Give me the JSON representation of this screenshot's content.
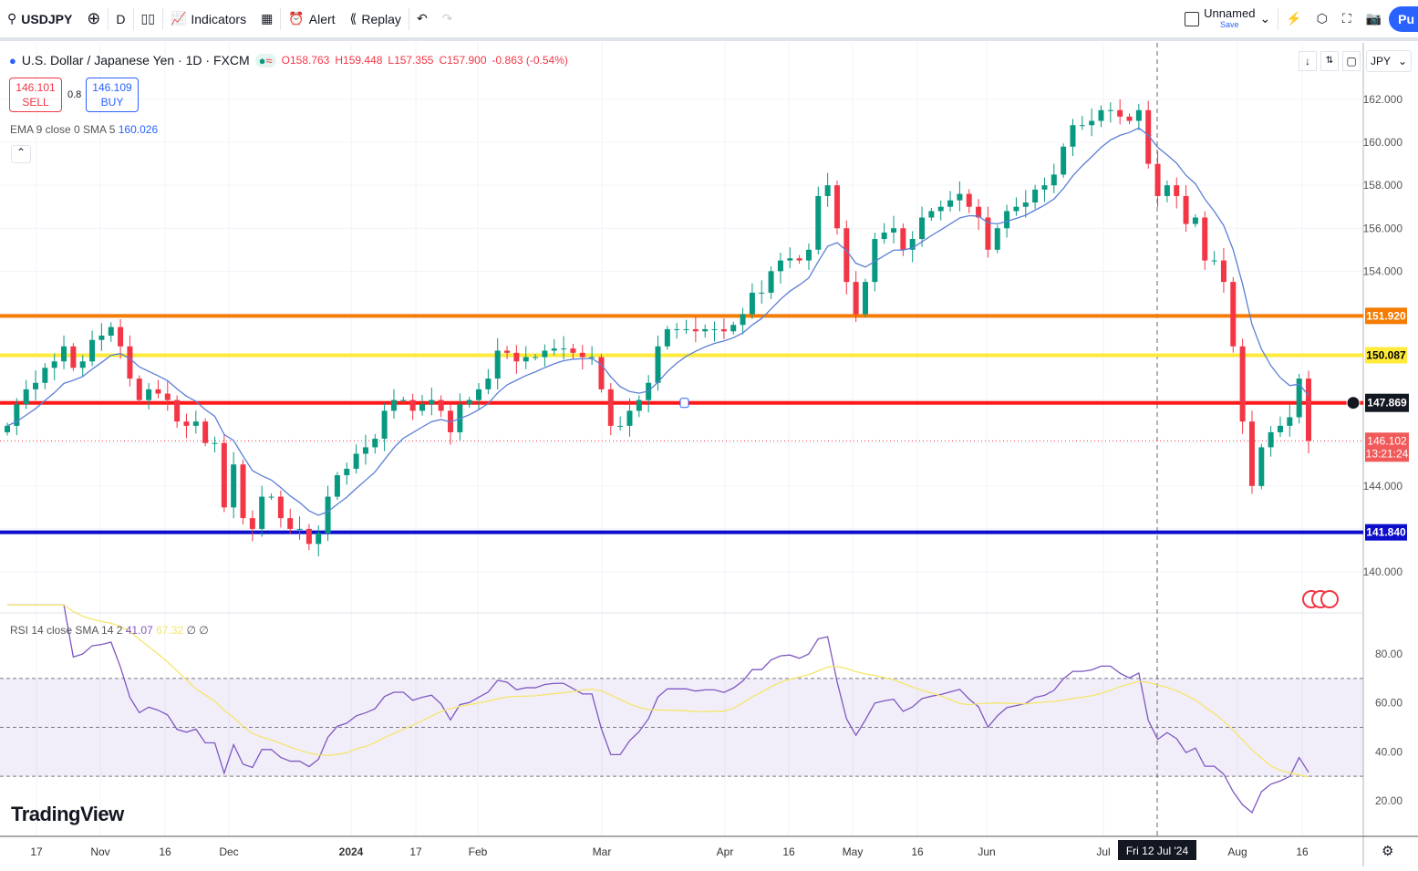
{
  "toolbar": {
    "symbol": "USDJPY",
    "interval": "D",
    "indicators": "Indicators",
    "alert": "Alert",
    "replay": "Replay",
    "layout_name": "Unnamed",
    "save": "Save",
    "publish": "Pu"
  },
  "legend": {
    "title": "U.S. Dollar / Japanese Yen · 1D · FXCM",
    "open": "O158.763",
    "high": "H159.448",
    "low": "L157.355",
    "close": "C157.900",
    "change": "-0.863 (-0.54%)"
  },
  "trade": {
    "sell_price": "146.101",
    "sell": "SELL",
    "spread": "0.8",
    "buy_price": "146.109",
    "buy": "BUY"
  },
  "ema": {
    "label": "EMA 9 close 0 SMA 5",
    "value": "160.026"
  },
  "rsi": {
    "label": "RSI 14 close SMA 14 2",
    "value": "41.07",
    "sma_value": "67.32",
    "extra": "∅ ∅"
  },
  "currency": "JPY",
  "logo": "TradingView",
  "colors": {
    "up": "#089981",
    "down": "#f23645",
    "ema": "#5b7fd6",
    "rsi": "#7e57c2",
    "rsi_sma": "#f5e56b",
    "orange": "#f57c00",
    "yellow": "#ffeb3b",
    "red": "#ff1a1a",
    "blue": "#0d0dcc"
  },
  "chart_data": {
    "type": "candlestick",
    "ylim": [
      139,
      163
    ],
    "price_ticks": [
      "162.000",
      "160.000",
      "158.000",
      "156.000",
      "154.000",
      "144.000",
      "140.000"
    ],
    "rsi_ticks": [
      "80.00",
      "60.00",
      "40.00",
      "20.00"
    ],
    "time_ticks": [
      "17",
      "Nov",
      "16",
      "Dec",
      "2024",
      "17",
      "Feb",
      "Mar",
      "Apr",
      "16",
      "May",
      "16",
      "Jun",
      "Jul",
      "Aug",
      "16"
    ],
    "crosshair_date": "Fri 12 Jul '24",
    "levels": [
      {
        "value": 151.92,
        "label": "151.920",
        "color": "#f57c00"
      },
      {
        "value": 150.087,
        "label": "150.087",
        "color": "#ffeb3b"
      },
      {
        "value": 147.869,
        "label": "147.869",
        "color": "#ff1a1a"
      },
      {
        "value": 141.84,
        "label": "141.840",
        "color": "#0d0dcc"
      }
    ],
    "last_price": {
      "value": 146.102,
      "label": "146.102",
      "countdown": "13:21:24"
    },
    "closes": [
      146.8,
      147.8,
      148.5,
      148.8,
      149.5,
      149.8,
      150.5,
      149.5,
      149.8,
      150.8,
      151.0,
      151.4,
      150.5,
      149.0,
      148.0,
      148.5,
      148.3,
      148.0,
      147.0,
      146.8,
      147.0,
      146.0,
      146.0,
      143.0,
      145.0,
      142.5,
      142.0,
      143.5,
      143.5,
      142.5,
      142.0,
      142.0,
      141.3,
      141.8,
      143.5,
      144.5,
      144.8,
      145.5,
      145.8,
      146.2,
      147.5,
      148.0,
      148.0,
      147.5,
      147.8,
      148.0,
      147.5,
      146.5,
      147.8,
      148.0,
      148.5,
      149.0,
      150.3,
      150.2,
      149.8,
      150.0,
      150.0,
      150.3,
      150.4,
      150.4,
      150.2,
      150.0,
      150.0,
      148.5,
      146.8,
      146.8,
      147.5,
      148.0,
      148.8,
      150.5,
      151.3,
      151.3,
      151.3,
      151.2,
      151.3,
      151.3,
      151.2,
      151.5,
      152.0,
      153.0,
      153.0,
      154.0,
      154.5,
      154.6,
      154.5,
      155.0,
      157.5,
      158.0,
      156.0,
      153.5,
      152.0,
      153.5,
      155.5,
      155.8,
      156.0,
      155.0,
      155.5,
      156.5,
      156.8,
      157.0,
      157.3,
      157.6,
      157.0,
      156.5,
      155.0,
      156.0,
      156.8,
      157.0,
      157.2,
      157.8,
      158.0,
      158.5,
      159.8,
      160.8,
      160.8,
      161.0,
      161.5,
      161.5,
      161.2,
      161.0,
      161.5,
      159.0,
      157.5,
      158.0,
      157.5,
      156.2,
      156.5,
      154.5,
      154.5,
      153.5,
      150.5,
      147.0,
      144.0,
      145.8,
      146.5,
      146.8,
      147.2,
      149.0,
      146.1
    ]
  }
}
